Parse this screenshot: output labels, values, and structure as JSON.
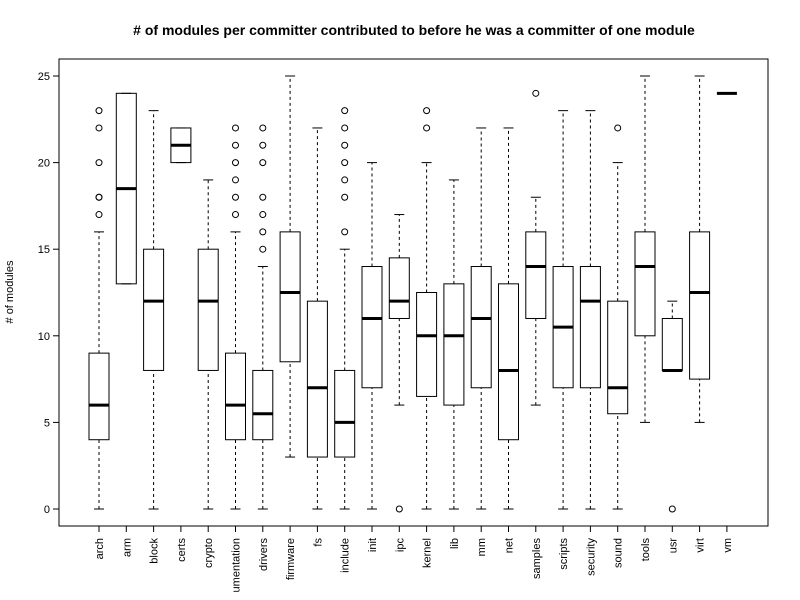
{
  "chart_data": {
    "type": "boxplot",
    "title": "# of modules per committer contributed to before he was a committer of one module",
    "xlabel": "",
    "ylabel": "# of modules",
    "ylim": [
      0,
      25
    ],
    "yticks": [
      0,
      5,
      10,
      15,
      20,
      25
    ],
    "grid": false,
    "categories": [
      "arch",
      "arm",
      "block",
      "certs",
      "crypto",
      "umentation",
      "drivers",
      "firmware",
      "fs",
      "include",
      "init",
      "ipc",
      "kernel",
      "lib",
      "mm",
      "net",
      "samples",
      "scripts",
      "security",
      "sound",
      "tools",
      "usr",
      "virt",
      "vm"
    ],
    "boxes": [
      {
        "whisker_low": 0,
        "q1": 4,
        "median": 6,
        "q3": 9,
        "whisker_high": 16,
        "outliers": [
          17,
          18,
          18,
          20,
          22,
          23
        ]
      },
      {
        "whisker_low": 13,
        "q1": 13,
        "median": 18.5,
        "q3": 24,
        "whisker_high": 24,
        "outliers": []
      },
      {
        "whisker_low": 0,
        "q1": 8,
        "median": 12,
        "q3": 15,
        "whisker_high": 23,
        "outliers": []
      },
      {
        "whisker_low": 20,
        "q1": 20,
        "median": 21,
        "q3": 22,
        "whisker_high": 22,
        "outliers": []
      },
      {
        "whisker_low": 0,
        "q1": 8,
        "median": 12,
        "q3": 15,
        "whisker_high": 19,
        "outliers": []
      },
      {
        "whisker_low": 0,
        "q1": 4,
        "median": 6,
        "q3": 9,
        "whisker_high": 16,
        "outliers": [
          17,
          18,
          19,
          20,
          21,
          22
        ]
      },
      {
        "whisker_low": 0,
        "q1": 4,
        "median": 5.5,
        "q3": 8,
        "whisker_high": 14,
        "outliers": [
          15,
          16,
          17,
          18,
          20,
          21,
          22
        ]
      },
      {
        "whisker_low": 3,
        "q1": 8.5,
        "median": 12.5,
        "q3": 16,
        "whisker_high": 25,
        "outliers": []
      },
      {
        "whisker_low": 0,
        "q1": 3,
        "median": 7,
        "q3": 12,
        "whisker_high": 22,
        "outliers": []
      },
      {
        "whisker_low": 0,
        "q1": 3,
        "median": 5,
        "q3": 8,
        "whisker_high": 15,
        "outliers": [
          16,
          18,
          19,
          20,
          21,
          22,
          23
        ]
      },
      {
        "whisker_low": 0,
        "q1": 7,
        "median": 11,
        "q3": 14,
        "whisker_high": 20,
        "outliers": []
      },
      {
        "whisker_low": 6,
        "q1": 11,
        "median": 12,
        "q3": 14.5,
        "whisker_high": 17,
        "outliers": [
          0
        ]
      },
      {
        "whisker_low": 0,
        "q1": 6.5,
        "median": 10,
        "q3": 12.5,
        "whisker_high": 20,
        "outliers": [
          22,
          23
        ]
      },
      {
        "whisker_low": 0,
        "q1": 6,
        "median": 10,
        "q3": 13,
        "whisker_high": 19,
        "outliers": []
      },
      {
        "whisker_low": 0,
        "q1": 7,
        "median": 11,
        "q3": 14,
        "whisker_high": 22,
        "outliers": []
      },
      {
        "whisker_low": 0,
        "q1": 4,
        "median": 8,
        "q3": 13,
        "whisker_high": 22,
        "outliers": []
      },
      {
        "whisker_low": 6,
        "q1": 11,
        "median": 14,
        "q3": 16,
        "whisker_high": 18,
        "outliers": [
          24
        ]
      },
      {
        "whisker_low": 0,
        "q1": 7,
        "median": 10.5,
        "q3": 14,
        "whisker_high": 23,
        "outliers": []
      },
      {
        "whisker_low": 0,
        "q1": 7,
        "median": 12,
        "q3": 14,
        "whisker_high": 23,
        "outliers": []
      },
      {
        "whisker_low": 0,
        "q1": 5.5,
        "median": 7,
        "q3": 12,
        "whisker_high": 20,
        "outliers": [
          22
        ]
      },
      {
        "whisker_low": 5,
        "q1": 10,
        "median": 14,
        "q3": 16,
        "whisker_high": 25,
        "outliers": []
      },
      {
        "whisker_low": 8,
        "q1": 8,
        "median": 8,
        "q3": 11,
        "whisker_high": 12,
        "outliers": [
          0
        ]
      },
      {
        "whisker_low": 5,
        "q1": 7.5,
        "median": 12.5,
        "q3": 16,
        "whisker_high": 25,
        "outliers": []
      },
      {
        "whisker_low": 24,
        "q1": 24,
        "median": 24,
        "q3": 24,
        "whisker_high": 24,
        "outliers": []
      }
    ]
  }
}
